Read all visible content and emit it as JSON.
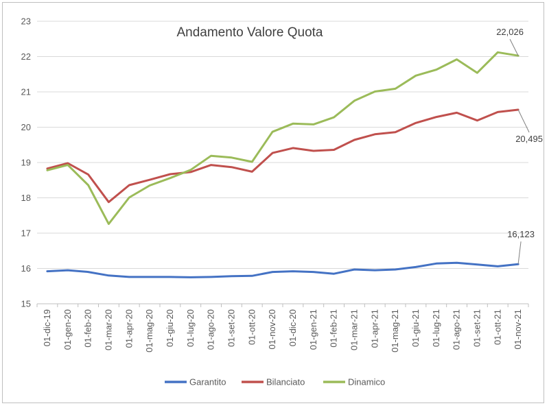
{
  "chart_data": {
    "type": "line",
    "title": "Andamento Valore Quota",
    "ylim": [
      15,
      23
    ],
    "yticks": [
      15,
      16,
      17,
      18,
      19,
      20,
      21,
      22,
      23
    ],
    "grid": true,
    "legend_position": "bottom",
    "categories": [
      "01-dic-19",
      "01-gen-20",
      "01-feb-20",
      "01-mar-20",
      "01-apr-20",
      "01-mag-20",
      "01-giu-20",
      "01-lug-20",
      "01-ago-20",
      "01-set-20",
      "01-ott-20",
      "01-nov-20",
      "01-dic-20",
      "01-gen-21",
      "01-feb-21",
      "01-mar-21",
      "01-apr-21",
      "01-mag-21",
      "01-giu-21",
      "01-lug-21",
      "01-ago-21",
      "01-set-21",
      "01-ott-21",
      "01-nov-21"
    ],
    "series": [
      {
        "name": "Garantito",
        "color": "#4472c4",
        "values": [
          15.92,
          15.95,
          15.9,
          15.8,
          15.76,
          15.76,
          15.76,
          15.75,
          15.76,
          15.78,
          15.79,
          15.9,
          15.92,
          15.9,
          15.85,
          15.97,
          15.95,
          15.97,
          16.04,
          16.14,
          16.16,
          16.11,
          16.06,
          16.123
        ]
      },
      {
        "name": "Bilanciato",
        "color": "#c0504d",
        "values": [
          18.83,
          18.98,
          18.66,
          17.88,
          18.36,
          18.51,
          18.67,
          18.73,
          18.93,
          18.87,
          18.74,
          19.27,
          19.41,
          19.33,
          19.36,
          19.64,
          19.8,
          19.86,
          20.12,
          20.29,
          20.41,
          20.19,
          20.43,
          20.495
        ]
      },
      {
        "name": "Dinamico",
        "color": "#9bbb59",
        "values": [
          18.78,
          18.93,
          18.36,
          17.26,
          18.01,
          18.35,
          18.56,
          18.79,
          19.19,
          19.14,
          19.02,
          19.87,
          20.1,
          20.08,
          20.28,
          20.75,
          21.01,
          21.09,
          21.46,
          21.63,
          21.92,
          21.54,
          22.12,
          22.026
        ]
      }
    ],
    "data_labels": [
      {
        "series": "Dinamico",
        "text": "22,026"
      },
      {
        "series": "Bilanciato",
        "text": "20,495"
      },
      {
        "series": "Garantito",
        "text": "16,123"
      }
    ]
  }
}
